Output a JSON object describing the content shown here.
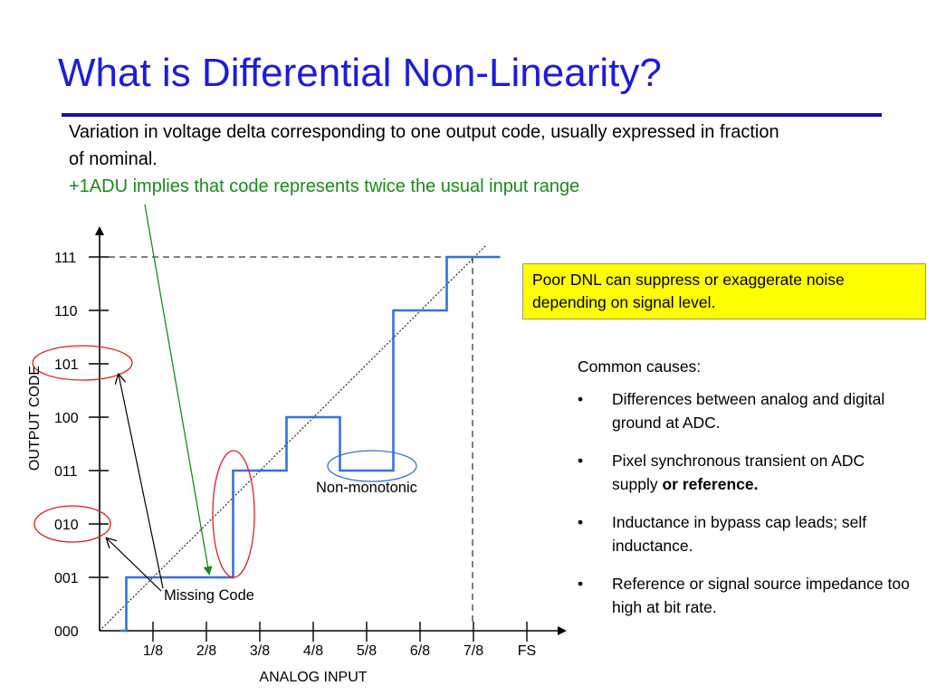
{
  "slide": {
    "title": "What is Differential Non-Linearity?",
    "intro_line": "Variation in voltage delta corresponding to one output code, usually expressed in fraction of nominal.",
    "intro_green": "+1ADU implies that code represents twice the usual input range",
    "callout": "Poor DNL can suppress or exaggerate noise depending on signal level.",
    "causes_heading": "Common causes:",
    "causes": [
      {
        "bullet": "•",
        "text": "Differences between analog and digital ground at ADC.",
        "bold": ""
      },
      {
        "bullet": "•",
        "text": "Pixel synchronous transient on ADC supply ",
        "bold": "or reference."
      },
      {
        "bullet": "•",
        "text": "Inductance in bypass cap leads; self inductance.",
        "bold": ""
      },
      {
        "bullet": "•",
        "text": "Reference or signal source impedance too high at bit rate.",
        "bold": ""
      }
    ]
  },
  "diagram": {
    "y_axis_label": "OUTPUT CODE",
    "x_axis_label": "ANALOG INPUT",
    "y_ticks": [
      "000",
      "001",
      "010",
      "011",
      "100",
      "101",
      "110",
      "111"
    ],
    "x_ticks": [
      "1/8",
      "2/8",
      "3/8",
      "4/8",
      "5/8",
      "6/8",
      "7/8",
      "FS"
    ],
    "annotations": {
      "missing_code": "Missing Code",
      "non_monotonic": "Non-monotonic"
    },
    "transfer_steps": [
      {
        "code": 0,
        "from": 0.375,
        "to": 0.5
      },
      {
        "code": 1,
        "from": 0.5,
        "to": 2.5
      },
      {
        "code": 3,
        "from": 2.5,
        "to": 3.5
      },
      {
        "code": 4,
        "from": 3.5,
        "to": 4.5
      },
      {
        "code": 3,
        "from": 4.5,
        "to": 5.5
      },
      {
        "code": 6,
        "from": 5.5,
        "to": 6.5
      },
      {
        "code": 7,
        "from": 6.5,
        "to": 7.5
      }
    ],
    "colors": {
      "transfer": "#3a6fd8",
      "axes": "#000000",
      "ideal": "#000000",
      "missing_circle": "#e02020",
      "nonmono_ellipse": "#3a6fd8",
      "green_arrow": "#1a8a1a"
    }
  }
}
